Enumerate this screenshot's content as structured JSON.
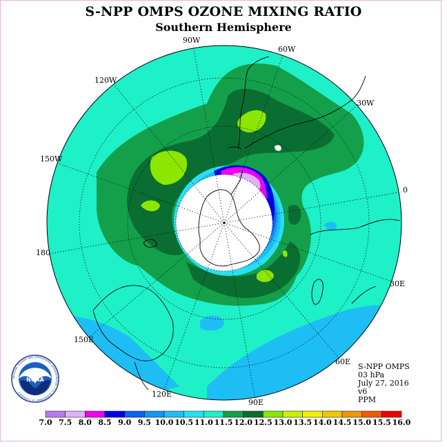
{
  "title": "S-NPP OMPS OZONE MIXING RATIO",
  "subtitle": "Southern Hemisphere",
  "longitude_labels": [
    "90W",
    "60W",
    "30W",
    "0",
    "30E",
    "60E",
    "90E",
    "120E",
    "150E",
    "180",
    "150W",
    "120W"
  ],
  "info": {
    "instrument": "S-NPP OMPS",
    "level": "03 hPa",
    "date": "July 27, 2016",
    "version": "v6",
    "units": "PPM"
  },
  "logo": {
    "text": "NOAA",
    "ring_text": "NATIONAL OCEANIC AND ATMOSPHERIC ADMINISTRATION · U.S. DEPARTMENT OF COMMERCE"
  },
  "colorbar": {
    "ticks": [
      "7.0",
      "7.5",
      "8.0",
      "8.5",
      "9.0",
      "9.5",
      "10.0",
      "10.5",
      "11.0",
      "11.5",
      "12.0",
      "12.5",
      "13.0",
      "13.5",
      "14.0",
      "14.5",
      "15.0",
      "15.5",
      "16.0"
    ],
    "colors": [
      "#b77bf0",
      "#dcb3f5",
      "#f000f0",
      "#0000e8",
      "#0a64f0",
      "#1496f5",
      "#1ebef5",
      "#28e0f5",
      "#1ef0c8",
      "#14a04b",
      "#0a6e32",
      "#8ce600",
      "#c8f000",
      "#f0f000",
      "#f0c800",
      "#f09600",
      "#f05a00",
      "#f00000",
      "#8b4513"
    ]
  }
}
